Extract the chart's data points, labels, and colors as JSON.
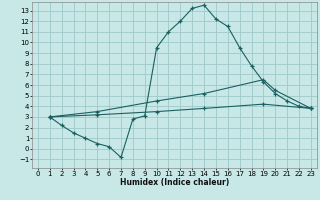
{
  "xlabel": "Humidex (Indice chaleur)",
  "bg_color": "#c8e8e8",
  "grid_color": "#a0c8c8",
  "line_color": "#1a6060",
  "xlim": [
    -0.5,
    23.5
  ],
  "ylim": [
    -1.8,
    13.8
  ],
  "xticks": [
    0,
    1,
    2,
    3,
    4,
    5,
    6,
    7,
    8,
    9,
    10,
    11,
    12,
    13,
    14,
    15,
    16,
    17,
    18,
    19,
    20,
    21,
    22,
    23
  ],
  "yticks": [
    -1,
    0,
    1,
    2,
    3,
    4,
    5,
    6,
    7,
    8,
    9,
    10,
    11,
    12,
    13
  ],
  "curve_main_x": [
    1,
    2,
    3,
    4,
    5,
    6,
    7,
    8,
    9,
    10,
    11,
    12,
    13,
    14,
    15,
    16,
    17,
    18,
    19,
    20,
    21,
    22,
    23
  ],
  "curve_main_y": [
    3.0,
    2.2,
    1.5,
    1.0,
    0.5,
    0.2,
    -0.8,
    2.8,
    3.1,
    9.5,
    11.0,
    12.0,
    13.2,
    13.5,
    12.2,
    11.5,
    9.5,
    7.8,
    6.3,
    5.2,
    4.5,
    4.0,
    3.8
  ],
  "curve_upper_x": [
    1,
    5,
    10,
    14,
    19,
    20,
    23
  ],
  "curve_upper_y": [
    3.0,
    3.5,
    4.5,
    5.2,
    6.5,
    5.5,
    3.8
  ],
  "curve_lower_x": [
    1,
    5,
    10,
    14,
    19,
    23
  ],
  "curve_lower_y": [
    3.0,
    3.2,
    3.5,
    3.8,
    4.2,
    3.8
  ]
}
